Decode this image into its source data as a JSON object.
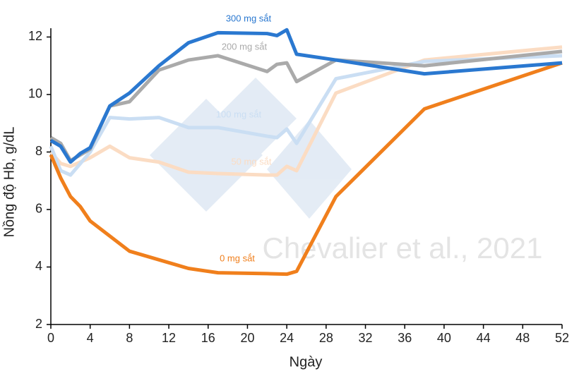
{
  "chart_data": {
    "type": "line",
    "xlabel": "Ngày",
    "ylabel": "Nồng độ Hb, g/dL",
    "watermark": "Chevalier et al., 2021",
    "xlim": [
      0,
      52
    ],
    "xticks": [
      0,
      4,
      8,
      12,
      16,
      20,
      24,
      28,
      32,
      36,
      40,
      44,
      48,
      52
    ],
    "ylim": [
      2,
      12.6
    ],
    "yticks": [
      2,
      4,
      6,
      8,
      10,
      12
    ],
    "series": [
      {
        "name": "50 mg sắt",
        "color": "#fbdcc3",
        "x": [
          0,
          1,
          2,
          4,
          6,
          8,
          11,
          14,
          17,
          22,
          23,
          24,
          25,
          29,
          38,
          52
        ],
        "values": [
          8.0,
          7.6,
          7.5,
          7.8,
          8.2,
          7.8,
          7.65,
          7.3,
          7.25,
          7.2,
          7.2,
          7.5,
          7.35,
          10.05,
          11.2,
          11.65
        ]
      },
      {
        "name": "100 mg sắt",
        "color": "#cadef3",
        "x": [
          0,
          1,
          2,
          4,
          6,
          8,
          11,
          14,
          17,
          22,
          23,
          24,
          25,
          29,
          38,
          52
        ],
        "values": [
          8.2,
          7.35,
          7.2,
          8.0,
          9.2,
          9.15,
          9.2,
          8.85,
          8.85,
          8.55,
          8.5,
          8.8,
          8.3,
          10.55,
          11.15,
          11.35
        ]
      },
      {
        "name": "200 mg sắt",
        "color": "#aaaaaa",
        "x": [
          0,
          1,
          2,
          3,
          4,
          6,
          8,
          11,
          14,
          17,
          22,
          23,
          24,
          25,
          29,
          38,
          52
        ],
        "values": [
          8.5,
          8.3,
          7.7,
          7.9,
          8.1,
          9.6,
          9.75,
          10.85,
          11.2,
          11.35,
          10.8,
          11.05,
          11.1,
          10.45,
          11.2,
          11.0,
          11.5
        ]
      },
      {
        "name": "0 mg sắt",
        "color": "#f07f1c",
        "x": [
          0,
          1,
          2,
          3,
          4,
          8,
          14,
          17,
          22,
          24,
          25,
          29,
          38,
          52
        ],
        "values": [
          7.9,
          7.1,
          6.45,
          6.1,
          5.6,
          4.55,
          3.95,
          3.8,
          3.77,
          3.75,
          3.85,
          6.45,
          9.5,
          11.1
        ]
      },
      {
        "name": "300 mg sắt",
        "color": "#2a78d0",
        "x": [
          0,
          1,
          2,
          3,
          4,
          6,
          8,
          11,
          14,
          17,
          22,
          23,
          24,
          25,
          29,
          38,
          52
        ],
        "values": [
          8.4,
          8.2,
          7.65,
          7.95,
          8.15,
          9.6,
          10.05,
          11.0,
          11.8,
          12.15,
          12.12,
          12.05,
          12.25,
          11.4,
          11.2,
          10.72,
          11.1
        ]
      }
    ]
  }
}
